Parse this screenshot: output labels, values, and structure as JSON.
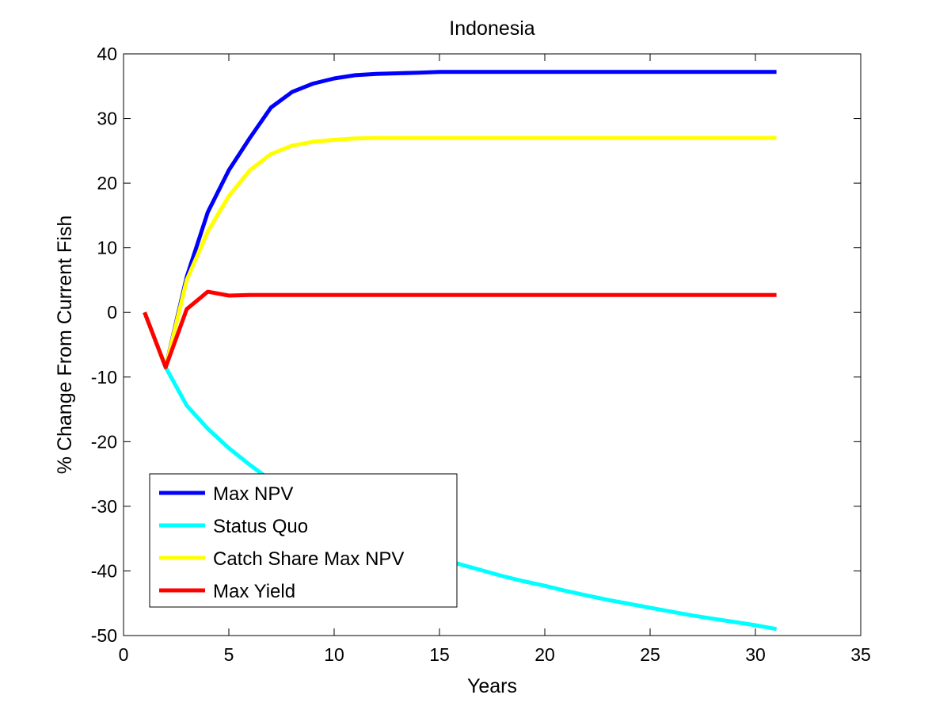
{
  "chart_data": {
    "type": "line",
    "title": "Indonesia",
    "xlabel": "Years",
    "ylabel": "% Change From Current Fish",
    "xlim": [
      0,
      35
    ],
    "ylim": [
      -50,
      40
    ],
    "xticks": [
      0,
      5,
      10,
      15,
      20,
      25,
      30,
      35
    ],
    "yticks": [
      -50,
      -40,
      -30,
      -20,
      -10,
      0,
      10,
      20,
      30,
      40
    ],
    "grid": false,
    "legend_position": "bottom-left",
    "x": [
      1,
      2,
      3,
      4,
      5,
      6,
      7,
      8,
      9,
      10,
      11,
      12,
      13,
      14,
      15,
      16,
      17,
      18,
      19,
      20,
      21,
      22,
      23,
      24,
      25,
      26,
      27,
      28,
      29,
      30,
      31
    ],
    "series": [
      {
        "name": "Max NPV",
        "color": "#0000ff",
        "values": [
          0,
          -8.5,
          5.5,
          15.5,
          22,
          27,
          31.7,
          34.1,
          35.4,
          36.2,
          36.7,
          36.9,
          37.0,
          37.1,
          37.2,
          37.2,
          37.2,
          37.2,
          37.2,
          37.2,
          37.2,
          37.2,
          37.2,
          37.2,
          37.2,
          37.2,
          37.2,
          37.2,
          37.2,
          37.2,
          37.2
        ]
      },
      {
        "name": "Status Quo",
        "color": "#00ffff",
        "values": [
          0,
          -8.5,
          -14.4,
          -18,
          -21,
          -23.6,
          -26,
          -28.1,
          -30,
          -31.6,
          -33.1,
          -34.5,
          -35.8,
          -36.9,
          -38,
          -39,
          -39.9,
          -40.8,
          -41.6,
          -42.3,
          -43.1,
          -43.8,
          -44.5,
          -45.1,
          -45.7,
          -46.3,
          -46.9,
          -47.4,
          -47.9,
          -48.4,
          -49
        ]
      },
      {
        "name": "Catch Share Max NPV",
        "color": "#ffff00",
        "values": [
          0,
          -8.5,
          5,
          12.5,
          18,
          22,
          24.5,
          25.8,
          26.4,
          26.7,
          26.9,
          27.0,
          27.0,
          27.0,
          27.0,
          27.0,
          27.0,
          27.0,
          27.0,
          27.0,
          27.0,
          27.0,
          27.0,
          27.0,
          27.0,
          27.0,
          27.0,
          27.0,
          27.0,
          27.0,
          27.0
        ]
      },
      {
        "name": "Max Yield",
        "color": "#ff0000",
        "values": [
          0,
          -8.5,
          0.5,
          3.2,
          2.6,
          2.7,
          2.7,
          2.7,
          2.7,
          2.7,
          2.7,
          2.7,
          2.7,
          2.7,
          2.7,
          2.7,
          2.7,
          2.7,
          2.7,
          2.7,
          2.7,
          2.7,
          2.7,
          2.7,
          2.7,
          2.7,
          2.7,
          2.7,
          2.7,
          2.7,
          2.7
        ]
      }
    ]
  }
}
